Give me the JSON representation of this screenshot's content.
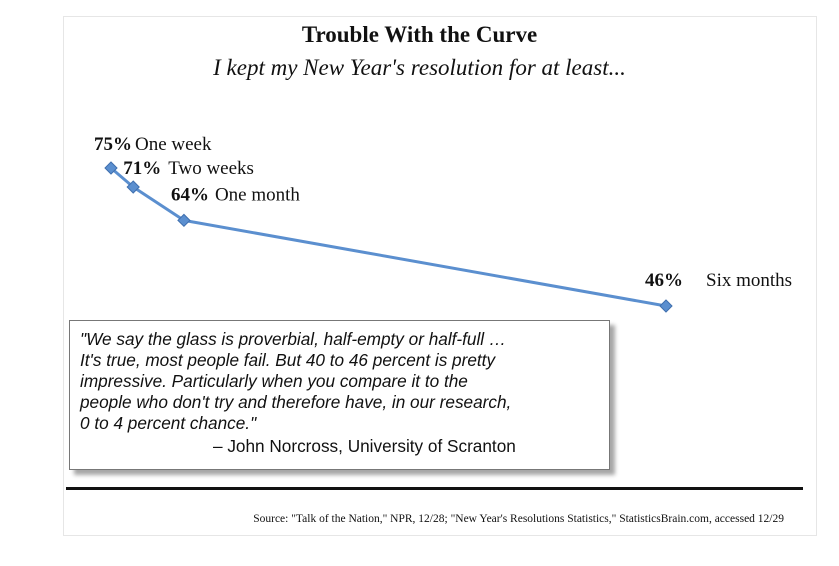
{
  "chart_data": {
    "type": "line",
    "title": "Trouble With the Curve",
    "subtitle": "I kept my New Year's resolution for at least...",
    "series": [
      {
        "color": "#5b8fcf",
        "points": [
          {
            "value": 75,
            "value_label": "75%",
            "label": "One week"
          },
          {
            "value": 71,
            "value_label": "71%",
            "label": "Two weeks"
          },
          {
            "value": 64,
            "value_label": "64%",
            "label": "One month"
          },
          {
            "value": 46,
            "value_label": "46%",
            "label": "Six months"
          }
        ]
      }
    ],
    "x_days": [
      7,
      14,
      30,
      182
    ],
    "xlabel": "",
    "ylabel": "",
    "grid": false,
    "legend": "none"
  },
  "quote": {
    "lines": [
      "\"We say the glass is proverbial, half-empty or half-full …",
      "It's true, most people fail. But 40 to 46 percent is pretty",
      "impressive. Particularly when you compare it to the",
      "people who don't try and therefore have, in our research,",
      "0 to 4 percent chance.\""
    ],
    "attribution": "– John Norcross, University of Scranton"
  },
  "source": "Source: \"Talk of the Nation,\" NPR, 12/28; \"New Year's Resolutions Statistics,\" StatisticsBrain.com, accessed 12/29"
}
